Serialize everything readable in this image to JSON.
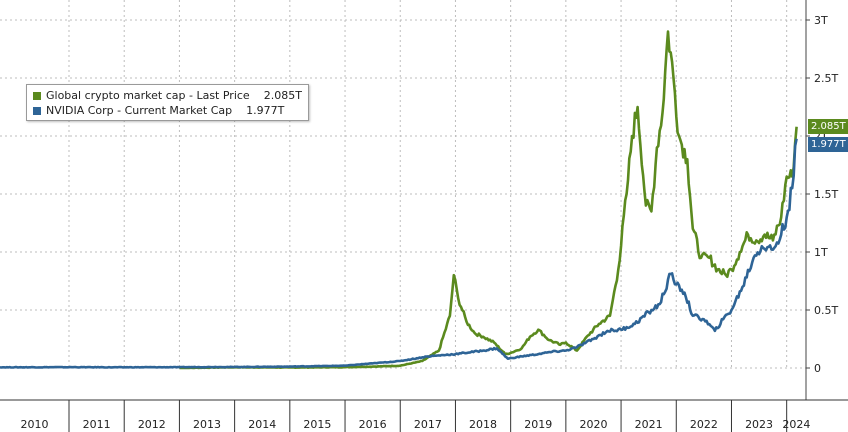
{
  "chart_data": {
    "type": "line",
    "title": "",
    "xlabel": "",
    "ylabel": "",
    "x_ticks": [
      "2010",
      "2011",
      "2012",
      "2013",
      "2014",
      "2015",
      "2016",
      "2017",
      "2018",
      "2019",
      "2020",
      "2021",
      "2022",
      "2023",
      "2024"
    ],
    "y_ticks": [
      "0",
      "0.5T",
      "1T",
      "1.5T",
      "2T",
      "2.5T",
      "3T"
    ],
    "ylim": [
      0,
      3
    ],
    "xlim": [
      2009.75,
      2024.35
    ],
    "grid": true,
    "legend_position": "top-left",
    "series": [
      {
        "name": "Global crypto market cap - Last Price",
        "last_value_label": "2.085T",
        "color": "#5b8a1e",
        "points": [
          [
            2013.0,
            0.0
          ],
          [
            2014.0,
            0.006
          ],
          [
            2015.0,
            0.004
          ],
          [
            2016.0,
            0.007
          ],
          [
            2016.5,
            0.012
          ],
          [
            2017.0,
            0.02
          ],
          [
            2017.4,
            0.06
          ],
          [
            2017.7,
            0.15
          ],
          [
            2017.9,
            0.45
          ],
          [
            2017.97,
            0.8
          ],
          [
            2018.05,
            0.6
          ],
          [
            2018.2,
            0.4
          ],
          [
            2018.35,
            0.3
          ],
          [
            2018.5,
            0.27
          ],
          [
            2018.7,
            0.22
          ],
          [
            2018.9,
            0.12
          ],
          [
            2019.0,
            0.13
          ],
          [
            2019.2,
            0.17
          ],
          [
            2019.35,
            0.27
          ],
          [
            2019.5,
            0.33
          ],
          [
            2019.7,
            0.24
          ],
          [
            2019.9,
            0.2
          ],
          [
            2020.0,
            0.22
          ],
          [
            2020.2,
            0.15
          ],
          [
            2020.4,
            0.28
          ],
          [
            2020.6,
            0.38
          ],
          [
            2020.8,
            0.45
          ],
          [
            2020.95,
            0.85
          ],
          [
            2021.1,
            1.5
          ],
          [
            2021.2,
            2.0
          ],
          [
            2021.3,
            2.25
          ],
          [
            2021.45,
            1.4
          ],
          [
            2021.55,
            1.35
          ],
          [
            2021.65,
            1.9
          ],
          [
            2021.75,
            2.2
          ],
          [
            2021.85,
            2.9
          ],
          [
            2021.95,
            2.5
          ],
          [
            2022.05,
            2.0
          ],
          [
            2022.2,
            1.8
          ],
          [
            2022.3,
            1.2
          ],
          [
            2022.45,
            0.95
          ],
          [
            2022.6,
            0.95
          ],
          [
            2022.75,
            0.85
          ],
          [
            2022.9,
            0.8
          ],
          [
            2023.0,
            0.85
          ],
          [
            2023.15,
            1.0
          ],
          [
            2023.3,
            1.15
          ],
          [
            2023.45,
            1.1
          ],
          [
            2023.6,
            1.15
          ],
          [
            2023.75,
            1.1
          ],
          [
            2023.9,
            1.3
          ],
          [
            2024.0,
            1.65
          ],
          [
            2024.1,
            1.65
          ],
          [
            2024.18,
            2.08
          ]
        ]
      },
      {
        "name": "NVIDIA Corp - Current Market Cap",
        "last_value_label": "1.977T",
        "color": "#2e6496",
        "points": [
          [
            2009.75,
            0.006
          ],
          [
            2011.0,
            0.007
          ],
          [
            2012.0,
            0.006
          ],
          [
            2013.0,
            0.007
          ],
          [
            2014.0,
            0.009
          ],
          [
            2015.0,
            0.012
          ],
          [
            2016.0,
            0.02
          ],
          [
            2016.5,
            0.04
          ],
          [
            2017.0,
            0.06
          ],
          [
            2017.5,
            0.1
          ],
          [
            2018.0,
            0.12
          ],
          [
            2018.5,
            0.15
          ],
          [
            2018.75,
            0.17
          ],
          [
            2018.95,
            0.08
          ],
          [
            2019.2,
            0.1
          ],
          [
            2019.5,
            0.12
          ],
          [
            2019.75,
            0.14
          ],
          [
            2020.0,
            0.15
          ],
          [
            2020.2,
            0.18
          ],
          [
            2020.5,
            0.25
          ],
          [
            2020.75,
            0.32
          ],
          [
            2021.0,
            0.33
          ],
          [
            2021.25,
            0.38
          ],
          [
            2021.5,
            0.48
          ],
          [
            2021.7,
            0.55
          ],
          [
            2021.9,
            0.81
          ],
          [
            2022.0,
            0.72
          ],
          [
            2022.15,
            0.65
          ],
          [
            2022.3,
            0.45
          ],
          [
            2022.5,
            0.42
          ],
          [
            2022.7,
            0.32
          ],
          [
            2022.85,
            0.42
          ],
          [
            2023.0,
            0.5
          ],
          [
            2023.2,
            0.7
          ],
          [
            2023.4,
            0.95
          ],
          [
            2023.55,
            1.05
          ],
          [
            2023.75,
            1.02
          ],
          [
            2023.9,
            1.15
          ],
          [
            2024.0,
            1.3
          ],
          [
            2024.1,
            1.55
          ],
          [
            2024.18,
            1.977
          ]
        ]
      }
    ]
  }
}
